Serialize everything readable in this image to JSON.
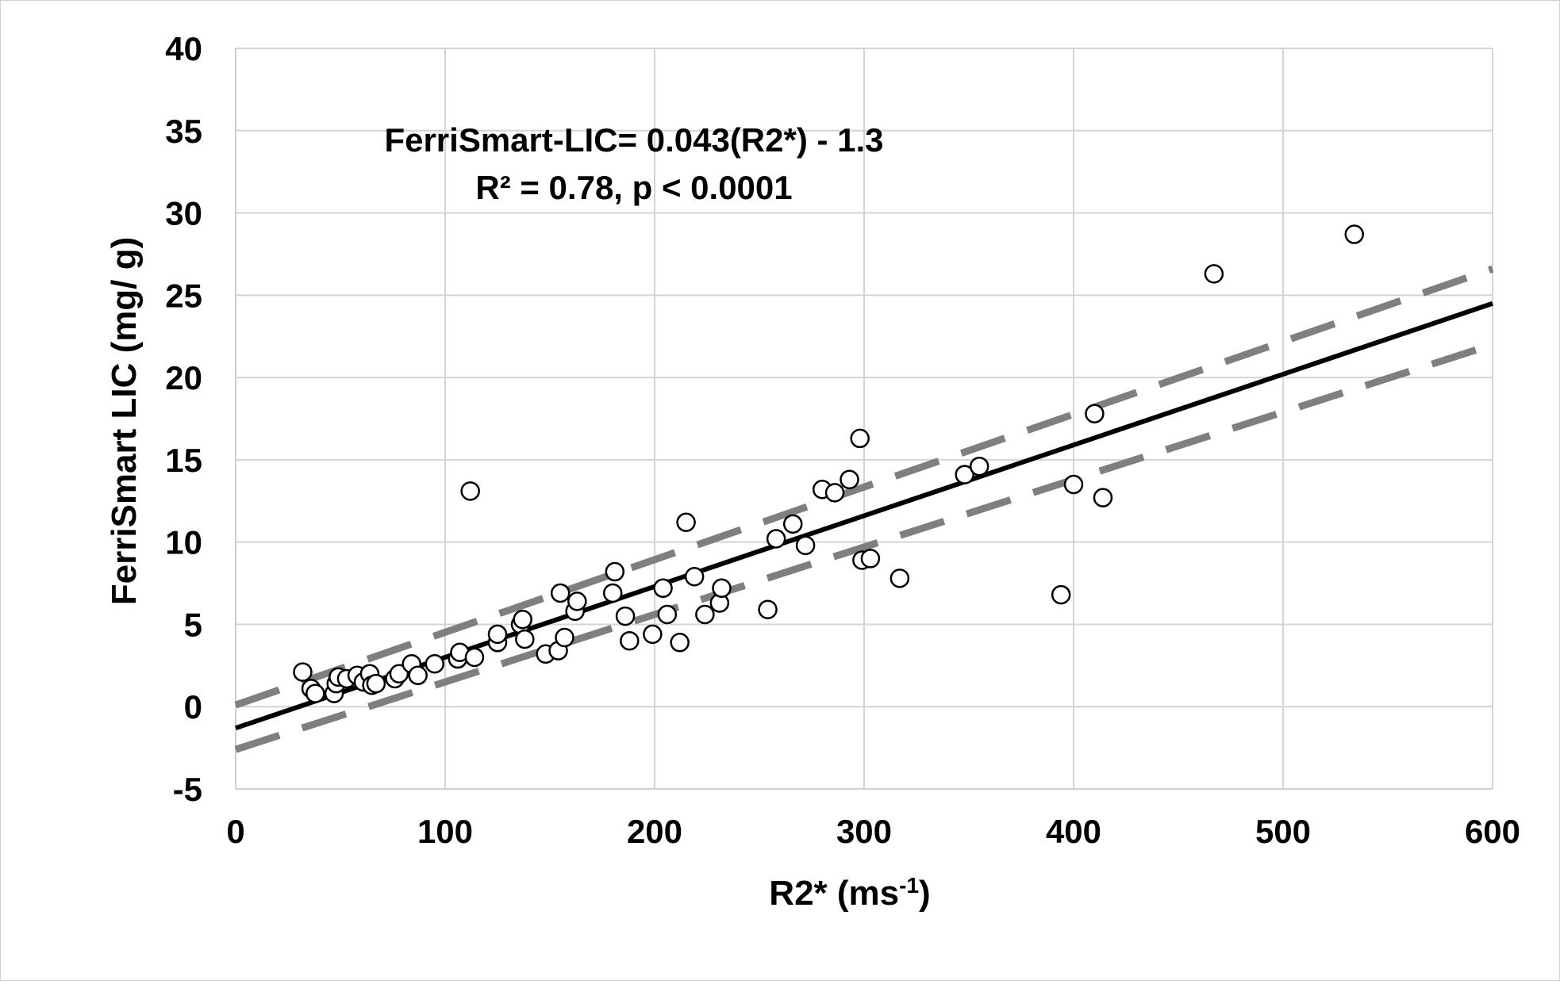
{
  "chart_data": {
    "type": "scatter",
    "title": "",
    "xlabel": "R2* (ms",
    "xlabel_sup": "-1",
    "xlabel_close": ")",
    "ylabel": "FerriSmart LIC  (mg/ g)",
    "xlim": [
      0,
      600
    ],
    "ylim": [
      -5,
      40
    ],
    "x_ticks": [
      "0",
      "100",
      "200",
      "300",
      "400",
      "500",
      "600"
    ],
    "y_ticks": [
      "-5",
      "0",
      "5",
      "10",
      "15",
      "20",
      "25",
      "30",
      "35",
      "40"
    ],
    "grid": true,
    "annotations": [
      "FerriSmart-LIC= 0.043(R2*) - 1.3",
      "R² = 0.78, p < 0.0001"
    ],
    "regression": {
      "slope": 0.043,
      "intercept": -1.3,
      "x_range": [
        0,
        600
      ]
    },
    "confidence_band": {
      "upper": [
        [
          0,
          0.1
        ],
        [
          600,
          26.6
        ]
      ],
      "lower": [
        [
          0,
          -2.6
        ],
        [
          600,
          22.0
        ]
      ]
    },
    "points": [
      [
        32,
        2.1
      ],
      [
        36,
        1.1
      ],
      [
        38,
        0.8
      ],
      [
        47,
        0.8
      ],
      [
        48,
        1.4
      ],
      [
        49,
        1.8
      ],
      [
        53,
        1.7
      ],
      [
        58,
        1.9
      ],
      [
        61,
        1.5
      ],
      [
        64,
        2.0
      ],
      [
        65,
        1.3
      ],
      [
        67,
        1.4
      ],
      [
        76,
        1.7
      ],
      [
        78,
        2.0
      ],
      [
        84,
        2.6
      ],
      [
        87,
        1.9
      ],
      [
        95,
        2.6
      ],
      [
        106,
        2.9
      ],
      [
        107,
        3.3
      ],
      [
        112,
        13.1
      ],
      [
        114,
        3.0
      ],
      [
        125,
        3.9
      ],
      [
        125,
        4.4
      ],
      [
        136,
        5.0
      ],
      [
        137,
        5.3
      ],
      [
        138,
        4.1
      ],
      [
        148,
        3.2
      ],
      [
        154,
        3.4
      ],
      [
        155,
        6.9
      ],
      [
        157,
        4.2
      ],
      [
        162,
        5.8
      ],
      [
        163,
        6.4
      ],
      [
        180,
        6.9
      ],
      [
        181,
        8.2
      ],
      [
        186,
        5.5
      ],
      [
        188,
        4.0
      ],
      [
        199,
        4.4
      ],
      [
        204,
        7.2
      ],
      [
        206,
        5.6
      ],
      [
        212,
        3.9
      ],
      [
        215,
        11.2
      ],
      [
        219,
        7.9
      ],
      [
        224,
        5.6
      ],
      [
        231,
        6.3
      ],
      [
        232,
        7.2
      ],
      [
        254,
        5.9
      ],
      [
        258,
        10.2
      ],
      [
        266,
        11.1
      ],
      [
        272,
        9.8
      ],
      [
        280,
        13.2
      ],
      [
        286,
        13.0
      ],
      [
        293,
        13.8
      ],
      [
        298,
        16.3
      ],
      [
        299,
        8.9
      ],
      [
        303,
        9.0
      ],
      [
        317,
        7.8
      ],
      [
        348,
        14.1
      ],
      [
        355,
        14.6
      ],
      [
        394,
        6.8
      ],
      [
        400,
        13.5
      ],
      [
        410,
        17.8
      ],
      [
        414,
        12.7
      ],
      [
        467,
        26.3
      ],
      [
        534,
        28.7
      ]
    ]
  }
}
